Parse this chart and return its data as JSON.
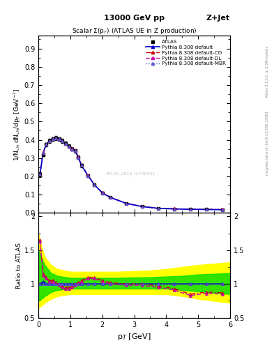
{
  "title_center": "13000 GeV pp",
  "title_right": "Z+Jet",
  "main_title": "Scalar $\\Sigma$(p$_T$) (ATLAS UE in Z production)",
  "ylabel_main": "1/N$_{ch}$ dN$_{ch}$/dp$_T$ [GeV$^{-1}$]",
  "ylabel_ratio": "Ratio to ATLAS",
  "xlabel": "p$_T$ [GeV]",
  "ylim_main": [
    0.0,
    0.97
  ],
  "ylim_ratio": [
    0.5,
    2.05
  ],
  "xlim": [
    0.0,
    6.0
  ],
  "watermark": "ATLAS_2019_I1736531",
  "right_label1": "Rivet 3.1.10, ≥ 3.5M events",
  "right_label2": "mcplots.cern.ch [arXiv:1306.3436]",
  "pt_data": [
    0.05,
    0.15,
    0.25,
    0.35,
    0.45,
    0.55,
    0.65,
    0.75,
    0.85,
    0.95,
    1.05,
    1.15,
    1.25,
    1.35,
    1.55,
    1.75,
    2.0,
    2.25,
    2.75,
    3.25,
    3.75,
    4.25,
    4.75,
    5.25,
    5.75
  ],
  "atlas_data": [
    0.21,
    0.32,
    0.375,
    0.395,
    0.405,
    0.41,
    0.405,
    0.395,
    0.38,
    0.365,
    0.35,
    0.34,
    0.305,
    0.26,
    0.205,
    0.155,
    0.11,
    0.085,
    0.052,
    0.035,
    0.025,
    0.022,
    0.02,
    0.019,
    0.018
  ],
  "atlas_err": [
    0.012,
    0.01,
    0.01,
    0.01,
    0.01,
    0.01,
    0.01,
    0.01,
    0.01,
    0.01,
    0.01,
    0.01,
    0.01,
    0.01,
    0.008,
    0.008,
    0.005,
    0.004,
    0.003,
    0.002,
    0.002,
    0.002,
    0.002,
    0.002,
    0.002
  ],
  "pythia_default": [
    0.21,
    0.33,
    0.375,
    0.395,
    0.405,
    0.41,
    0.405,
    0.395,
    0.38,
    0.365,
    0.35,
    0.34,
    0.305,
    0.26,
    0.205,
    0.155,
    0.11,
    0.085,
    0.052,
    0.035,
    0.025,
    0.022,
    0.02,
    0.019,
    0.018
  ],
  "pythia_cd": [
    0.21,
    0.335,
    0.375,
    0.395,
    0.406,
    0.41,
    0.405,
    0.396,
    0.38,
    0.365,
    0.351,
    0.341,
    0.306,
    0.261,
    0.206,
    0.156,
    0.111,
    0.086,
    0.053,
    0.036,
    0.026,
    0.023,
    0.021,
    0.02,
    0.019
  ],
  "pythia_dl": [
    0.211,
    0.33,
    0.376,
    0.396,
    0.405,
    0.411,
    0.406,
    0.396,
    0.381,
    0.366,
    0.351,
    0.341,
    0.306,
    0.261,
    0.206,
    0.156,
    0.111,
    0.086,
    0.053,
    0.036,
    0.026,
    0.023,
    0.021,
    0.02,
    0.019
  ],
  "pythia_mbr": [
    0.21,
    0.33,
    0.375,
    0.395,
    0.405,
    0.41,
    0.405,
    0.395,
    0.38,
    0.365,
    0.35,
    0.34,
    0.305,
    0.26,
    0.205,
    0.155,
    0.11,
    0.085,
    0.052,
    0.035,
    0.025,
    0.022,
    0.02,
    0.019,
    0.018
  ],
  "ratio_default": [
    1.0,
    1.03,
    1.0,
    1.0,
    1.0,
    1.0,
    1.0,
    1.0,
    1.0,
    1.0,
    1.0,
    1.0,
    1.0,
    1.0,
    1.0,
    1.0,
    1.0,
    1.0,
    1.0,
    1.0,
    1.0,
    1.0,
    1.0,
    1.0,
    1.0
  ],
  "ratio_cd": [
    1.65,
    1.15,
    1.1,
    1.05,
    1.05,
    1.02,
    1.0,
    0.97,
    0.95,
    0.95,
    0.97,
    1.0,
    1.02,
    1.05,
    1.1,
    1.1,
    1.05,
    1.02,
    1.0,
    1.0,
    0.97,
    0.93,
    0.85,
    0.88,
    0.87
  ],
  "ratio_dl": [
    1.63,
    1.13,
    1.08,
    1.03,
    1.03,
    1.0,
    0.98,
    0.95,
    0.93,
    0.93,
    0.95,
    0.98,
    1.0,
    1.03,
    1.08,
    1.08,
    1.03,
    1.0,
    0.98,
    0.98,
    0.95,
    0.91,
    0.83,
    0.86,
    0.85
  ],
  "ratio_mbr": [
    1.0,
    1.0,
    1.0,
    1.0,
    1.0,
    1.0,
    1.0,
    1.0,
    1.0,
    1.0,
    1.0,
    1.0,
    1.0,
    1.0,
    1.0,
    1.0,
    1.0,
    1.0,
    1.0,
    1.0,
    1.0,
    1.0,
    1.0,
    1.0,
    1.0
  ],
  "yellow_band_x": [
    0.0,
    0.1,
    0.2,
    0.4,
    0.6,
    1.0,
    1.5,
    2.5,
    3.5,
    4.0,
    4.5,
    5.0,
    5.5,
    6.0
  ],
  "yellow_band_lo": [
    0.65,
    0.68,
    0.72,
    0.78,
    0.82,
    0.85,
    0.85,
    0.85,
    0.85,
    0.85,
    0.82,
    0.78,
    0.75,
    0.72
  ],
  "yellow_band_hi": [
    1.75,
    1.55,
    1.4,
    1.28,
    1.22,
    1.18,
    1.18,
    1.18,
    1.2,
    1.22,
    1.25,
    1.28,
    1.3,
    1.32
  ],
  "green_band_x": [
    0.0,
    0.1,
    0.2,
    0.4,
    0.6,
    1.0,
    1.5,
    2.5,
    3.5,
    4.0,
    4.5,
    5.0,
    5.5,
    6.0
  ],
  "green_band_lo": [
    0.75,
    0.78,
    0.82,
    0.88,
    0.91,
    0.93,
    0.93,
    0.93,
    0.93,
    0.93,
    0.91,
    0.89,
    0.87,
    0.85
  ],
  "green_band_hi": [
    1.5,
    1.38,
    1.28,
    1.16,
    1.12,
    1.09,
    1.09,
    1.09,
    1.1,
    1.11,
    1.12,
    1.14,
    1.15,
    1.16
  ],
  "color_default": "#0000cc",
  "color_cd": "#cc0000",
  "color_dl": "#cc00aa",
  "color_mbr": "#5555cc",
  "background": "#ffffff"
}
